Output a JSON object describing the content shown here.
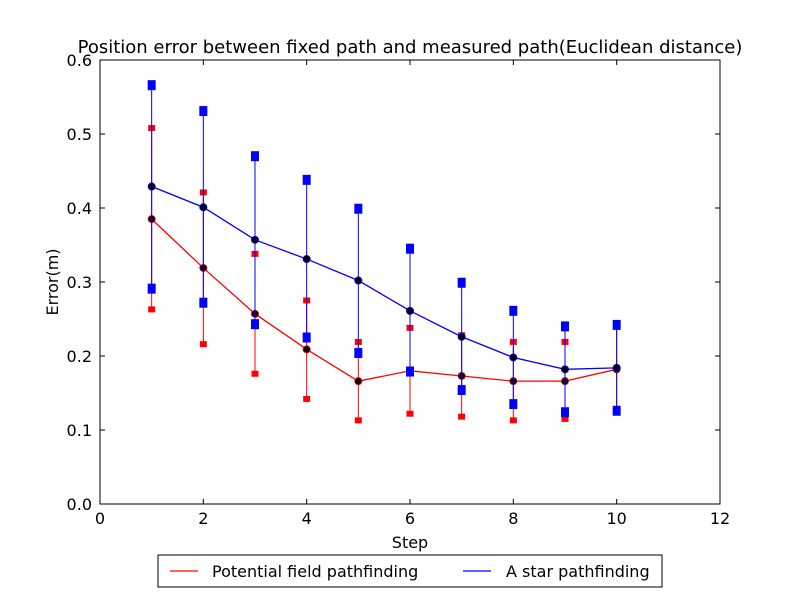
{
  "chart_data": {
    "type": "line",
    "title": "Position error between fixed path and measured path(Euclidean distance)",
    "xlabel": "Step",
    "ylabel": "Error(m)",
    "xlim": [
      0,
      12
    ],
    "ylim": [
      0.0,
      0.6
    ],
    "xticks": [
      "0",
      "2",
      "4",
      "6",
      "8",
      "10",
      "12"
    ],
    "yticks": [
      "0.0",
      "0.1",
      "0.2",
      "0.3",
      "0.4",
      "0.5",
      "0.6"
    ],
    "grid": false,
    "legend_position": "bottom-center",
    "series": [
      {
        "name": "Potential field pathfinding",
        "color": "#ff0000",
        "x": [
          1,
          2,
          3,
          4,
          5,
          6,
          7,
          8,
          9,
          10
        ],
        "y": [
          0.385,
          0.319,
          0.257,
          0.209,
          0.166,
          0.18,
          0.173,
          0.166,
          0.166,
          0.182
        ],
        "err_low": [
          0.263,
          0.216,
          0.176,
          0.142,
          0.113,
          0.122,
          0.118,
          0.113,
          0.115,
          0.125
        ],
        "err_high": [
          0.508,
          0.421,
          0.338,
          0.275,
          0.219,
          0.238,
          0.228,
          0.219,
          0.219,
          0.24
        ]
      },
      {
        "name": "A star pathfinding",
        "color": "#0000ff",
        "x": [
          1,
          2,
          3,
          4,
          5,
          6,
          7,
          8,
          9,
          10
        ],
        "y": [
          0.429,
          0.401,
          0.357,
          0.331,
          0.302,
          0.261,
          0.226,
          0.198,
          0.182,
          0.184
        ],
        "err_low": [
          0.291,
          0.272,
          0.243,
          0.225,
          0.204,
          0.179,
          0.154,
          0.135,
          0.124,
          0.126
        ],
        "err_high": [
          0.566,
          0.531,
          0.47,
          0.438,
          0.399,
          0.345,
          0.299,
          0.261,
          0.24,
          0.242
        ]
      }
    ]
  }
}
